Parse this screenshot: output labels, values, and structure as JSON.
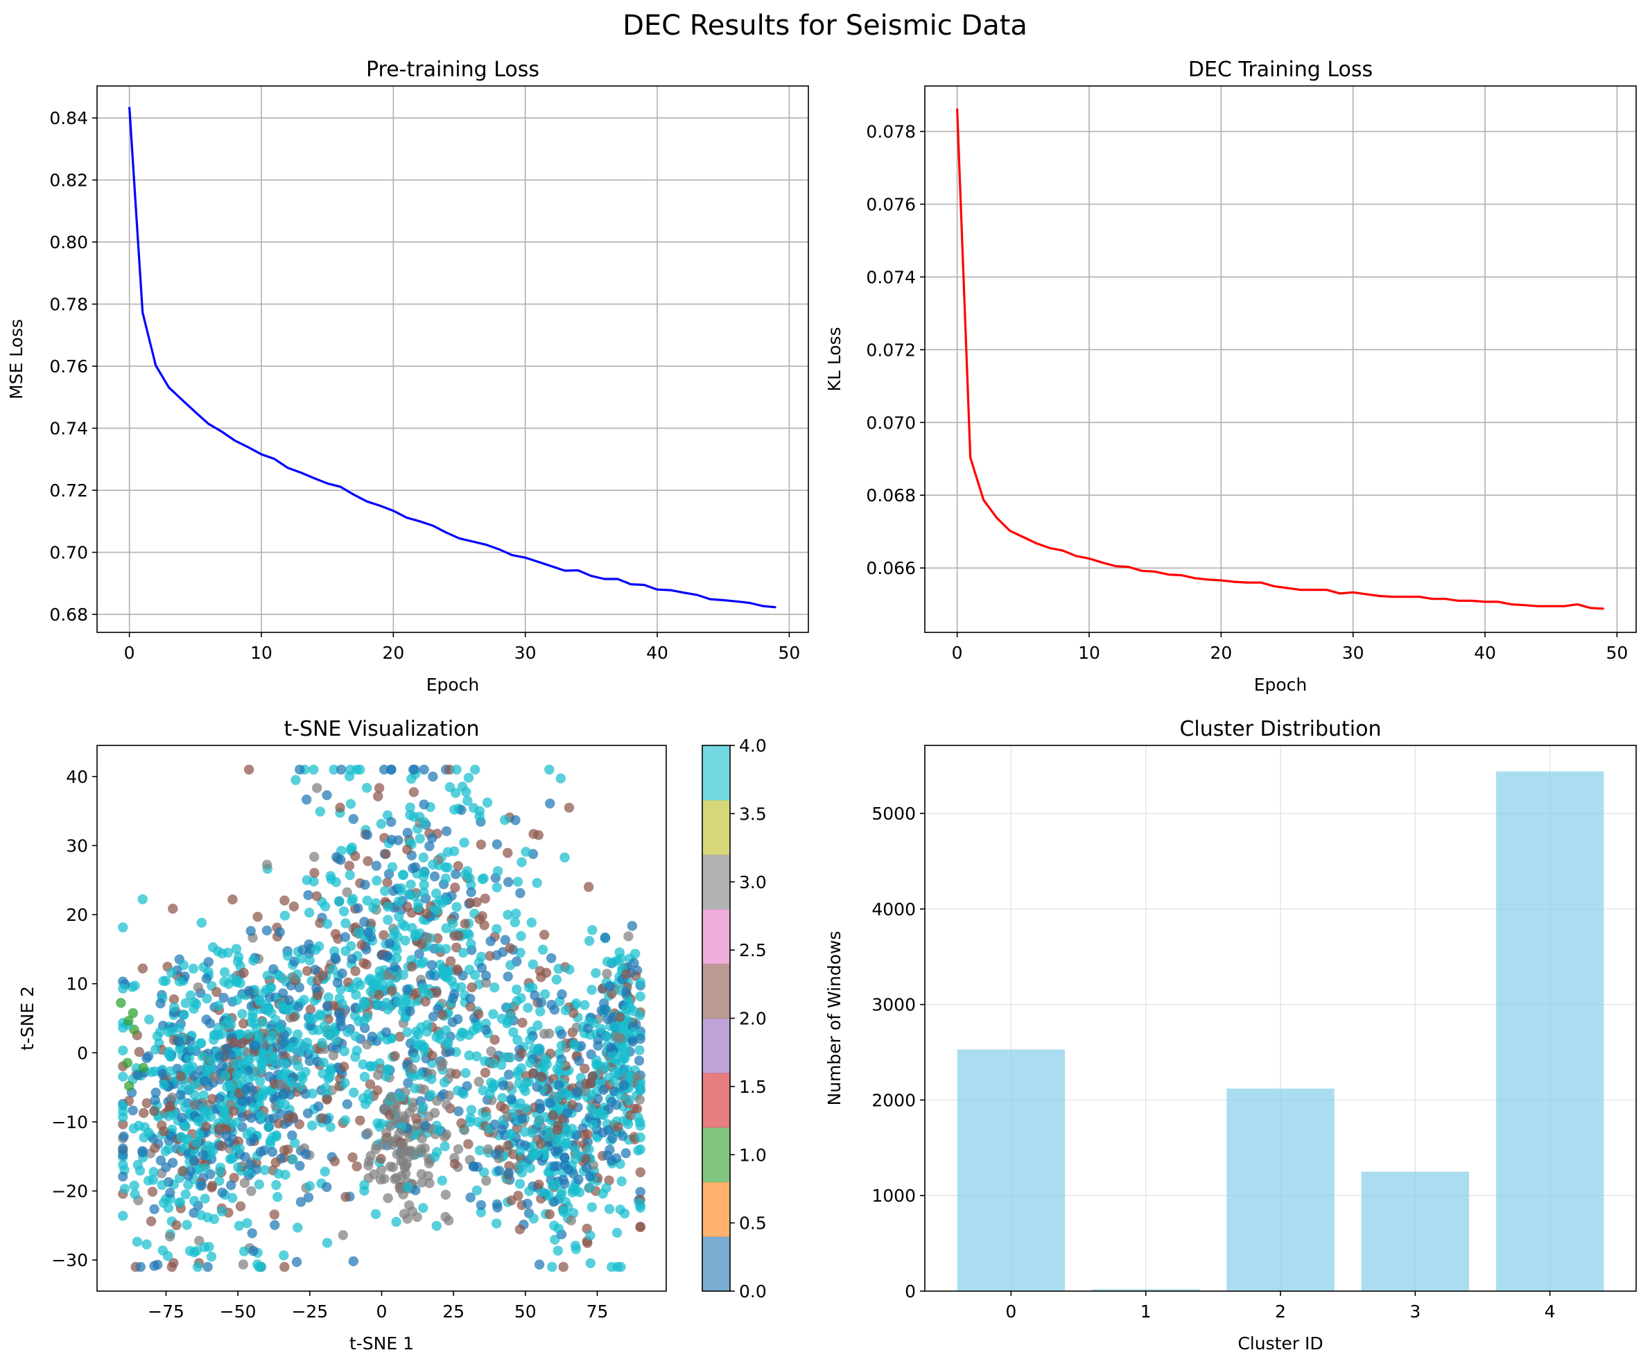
{
  "figure": {
    "title": "DEC Results for Seismic Data"
  },
  "chart_data": [
    {
      "id": "pretrain",
      "type": "line",
      "title": "Pre-training Loss",
      "xlabel": "Epoch",
      "ylabel": "MSE Loss",
      "xlim": [
        -2.45,
        51.45
      ],
      "ylim": [
        0.6742,
        0.8503
      ],
      "xticks": [
        0,
        10,
        20,
        30,
        40,
        50
      ],
      "xtick_labels": [
        "0",
        "10",
        "20",
        "30",
        "40",
        "50"
      ],
      "yticks": [
        0.68,
        0.7,
        0.72,
        0.74,
        0.76,
        0.78,
        0.8,
        0.82,
        0.84
      ],
      "ytick_labels": [
        "0.68",
        "0.70",
        "0.72",
        "0.74",
        "0.76",
        "0.78",
        "0.80",
        "0.82",
        "0.84"
      ],
      "grid": true,
      "color": "#0000ff",
      "x": [
        0,
        1,
        2,
        3,
        4,
        5,
        6,
        7,
        8,
        9,
        10,
        11,
        12,
        13,
        14,
        15,
        16,
        17,
        18,
        19,
        20,
        21,
        22,
        23,
        24,
        25,
        26,
        27,
        28,
        29,
        30,
        31,
        32,
        33,
        34,
        35,
        36,
        37,
        38,
        39,
        40,
        41,
        42,
        43,
        44,
        45,
        46,
        47,
        48,
        49
      ],
      "y": [
        0.8435,
        0.7773,
        0.7602,
        0.7531,
        0.7491,
        0.7452,
        0.7414,
        0.7389,
        0.736,
        0.7339,
        0.7316,
        0.7301,
        0.7272,
        0.7257,
        0.7239,
        0.7222,
        0.7211,
        0.7186,
        0.7164,
        0.715,
        0.7134,
        0.7112,
        0.71,
        0.7086,
        0.7064,
        0.7045,
        0.7035,
        0.7025,
        0.701,
        0.6991,
        0.6983,
        0.6969,
        0.6955,
        0.6941,
        0.6942,
        0.6924,
        0.6914,
        0.6914,
        0.6897,
        0.6895,
        0.688,
        0.6878,
        0.687,
        0.6863,
        0.6849,
        0.6846,
        0.6842,
        0.6837,
        0.6827,
        0.6823
      ]
    },
    {
      "id": "dec",
      "type": "line",
      "title": "DEC Training Loss",
      "xlabel": "Epoch",
      "ylabel": "KL Loss",
      "xlim": [
        -2.45,
        51.45
      ],
      "ylim": [
        0.06423,
        0.07925
      ],
      "xticks": [
        0,
        10,
        20,
        30,
        40,
        50
      ],
      "xtick_labels": [
        "0",
        "10",
        "20",
        "30",
        "40",
        "50"
      ],
      "yticks": [
        0.066,
        0.068,
        0.07,
        0.072,
        0.074,
        0.076,
        0.078
      ],
      "ytick_labels": [
        "0.066",
        "0.068",
        "0.070",
        "0.072",
        "0.074",
        "0.076",
        "0.078"
      ],
      "grid": true,
      "color": "#ff0000",
      "x": [
        0,
        1,
        2,
        3,
        4,
        5,
        6,
        7,
        8,
        9,
        10,
        11,
        12,
        13,
        14,
        15,
        16,
        17,
        18,
        19,
        20,
        21,
        22,
        23,
        24,
        25,
        26,
        27,
        28,
        29,
        30,
        31,
        32,
        33,
        34,
        35,
        36,
        37,
        38,
        39,
        40,
        41,
        42,
        43,
        44,
        45,
        46,
        47,
        48,
        49
      ],
      "y": [
        0.07863,
        0.06903,
        0.06787,
        0.06738,
        0.06702,
        0.06685,
        0.06668,
        0.06655,
        0.06648,
        0.06633,
        0.06626,
        0.06615,
        0.06605,
        0.06603,
        0.06592,
        0.0659,
        0.06582,
        0.0658,
        0.06572,
        0.06568,
        0.06566,
        0.06562,
        0.0656,
        0.0656,
        0.0655,
        0.06545,
        0.0654,
        0.0654,
        0.0654,
        0.0653,
        0.06533,
        0.06528,
        0.06523,
        0.06521,
        0.06521,
        0.06521,
        0.06515,
        0.06515,
        0.0651,
        0.0651,
        0.06507,
        0.06507,
        0.065,
        0.06498,
        0.06495,
        0.06495,
        0.06495,
        0.065,
        0.0649,
        0.06488
      ]
    },
    {
      "id": "tsne",
      "type": "scatter",
      "title": "t-SNE Visualization",
      "xlabel": "t-SNE 1",
      "ylabel": "t-SNE 2",
      "xlim": [
        -99,
        99
      ],
      "ylim": [
        -34.5,
        44.5
      ],
      "xticks": [
        -75,
        -50,
        -25,
        0,
        25,
        50,
        75
      ],
      "xtick_labels": [
        "−75",
        "−50",
        "−25",
        "0",
        "25",
        "50",
        "75"
      ],
      "yticks": [
        -30,
        -20,
        -10,
        0,
        10,
        20,
        30,
        40
      ],
      "ytick_labels": [
        "−30",
        "−20",
        "−10",
        "0",
        "10",
        "20",
        "30",
        "40"
      ],
      "grid": false,
      "colormap": [
        "#1f77b4",
        "#ff7f0e",
        "#2ca02c",
        "#d62728",
        "#9467bd",
        "#8c564b",
        "#e377c2",
        "#7f7f7f",
        "#bcbd22",
        "#17becf"
      ],
      "colorbar": {
        "range": [
          0,
          4
        ],
        "ticks": [
          0.0,
          0.5,
          1.0,
          1.5,
          2.0,
          2.5,
          3.0,
          3.5,
          4.0
        ],
        "tick_labels": [
          "0.0",
          "0.5",
          "1.0",
          "1.5",
          "2.0",
          "2.5",
          "3.0",
          "3.5",
          "4.0"
        ]
      },
      "clusters": [
        {
          "cluster": 0,
          "share": 0.22,
          "color": "#1f77b4"
        },
        {
          "cluster": 1,
          "share": 0.003,
          "color": "#2ca02c"
        },
        {
          "cluster": 2,
          "share": 0.18,
          "color": "#8c564b"
        },
        {
          "cluster": 3,
          "share": 0.11,
          "color": "#7f7f7f"
        },
        {
          "cluster": 4,
          "share": 0.49,
          "color": "#17becf"
        }
      ]
    },
    {
      "id": "dist",
      "type": "bar",
      "title": "Cluster Distribution",
      "xlabel": "Cluster ID",
      "ylabel": "Number of Windows",
      "categories": [
        "0",
        "1",
        "2",
        "3",
        "4"
      ],
      "values": [
        2530,
        20,
        2120,
        1250,
        5440
      ],
      "xlim": [
        -0.64,
        4.64
      ],
      "ylim": [
        0,
        5712
      ],
      "yticks": [
        0,
        1000,
        2000,
        3000,
        4000,
        5000
      ],
      "ytick_labels": [
        "0",
        "1000",
        "2000",
        "3000",
        "4000",
        "5000"
      ],
      "grid": true,
      "color": "#87ceeb"
    }
  ]
}
